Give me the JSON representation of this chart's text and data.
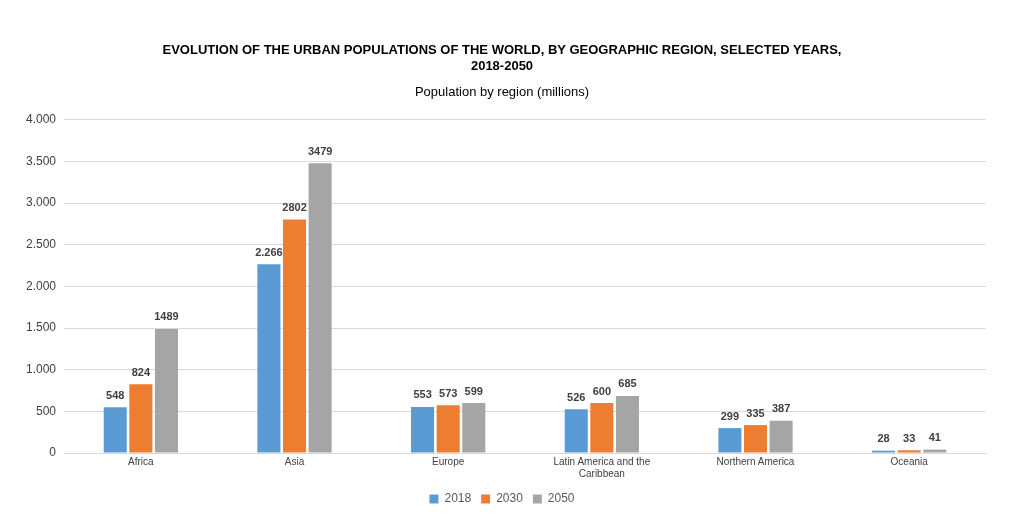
{
  "chart_data": {
    "type": "bar",
    "title": "EVOLUTION OF THE URBAN POPULATIONS OF THE WORLD, BY GEOGRAPHIC REGION, SELECTED YEARS, 2018-2050",
    "subtitle": "Population by region (millions)",
    "categories": [
      "Africa",
      "Asia",
      "Europe",
      "Latin America and the Caribbean",
      "Northern America",
      "Oceania"
    ],
    "series": [
      {
        "name": "2018",
        "color": "#5b9bd5",
        "values": [
          548,
          2266,
          553,
          526,
          299,
          28
        ],
        "value_labels": [
          "548",
          "2.266",
          "553",
          "526",
          "299",
          "28"
        ]
      },
      {
        "name": "2030",
        "color": "#ed7d31",
        "values": [
          824,
          2802,
          573,
          600,
          335,
          33
        ],
        "value_labels": [
          "824",
          "2802",
          "573",
          "600",
          "335",
          "33"
        ]
      },
      {
        "name": "2050",
        "color": "#a5a5a5",
        "values": [
          1489,
          3479,
          599,
          685,
          387,
          41
        ],
        "value_labels": [
          "1489",
          "3479",
          "599",
          "685",
          "387",
          "41"
        ]
      }
    ],
    "ylim": [
      0,
      4000
    ],
    "yticks": [
      {
        "value": 0,
        "label": "0"
      },
      {
        "value": 500,
        "label": "500"
      },
      {
        "value": 1000,
        "label": "1.000"
      },
      {
        "value": 1500,
        "label": "1.500"
      },
      {
        "value": 2000,
        "label": "2.000"
      },
      {
        "value": 2500,
        "label": "2.500"
      },
      {
        "value": 3000,
        "label": "3.000"
      },
      {
        "value": 3500,
        "label": "3.500"
      },
      {
        "value": 4000,
        "label": "4.000"
      }
    ],
    "grid": "y",
    "legend": "bottom"
  }
}
